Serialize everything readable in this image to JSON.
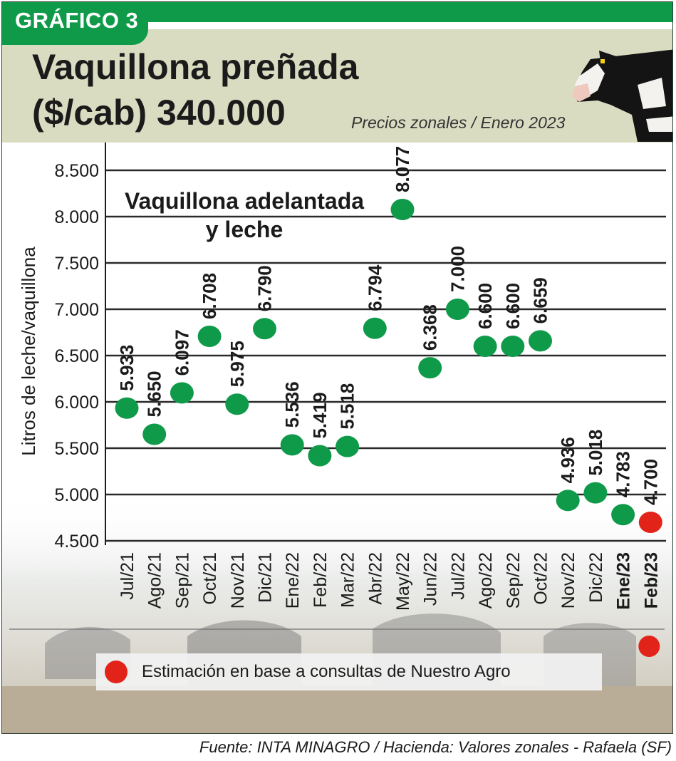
{
  "badge": "GRÁFICO 3",
  "title_line1": "Vaquillona preñada",
  "title_line2": "($/cab) 340.000",
  "subtitle": "Precios zonales / Enero 2023",
  "legend_text": "Estimación en base a consultas de Nuestro Agro",
  "source": "Fuente: INTA MINAGRO /  Hacienda: Valores zonales - Rafaela (SF)",
  "icons": {
    "header_image": "cow-icon",
    "legend_marker": "red-dot-icon"
  },
  "colors": {
    "accent": "#0f9a4a",
    "point": "#0f9a4a",
    "estimate": "#e2231a",
    "header_bg": "#d9dcc1"
  },
  "chart_data": {
    "type": "scatter",
    "title": "Vaquillona adelantada y leche",
    "title_lines": [
      "Vaquillona adelantada",
      "y leche"
    ],
    "ylabel": "Litros de leche/vaquillona",
    "xlabel": "",
    "ylim": [
      4500,
      8500
    ],
    "yticks": [
      8500,
      8000,
      7500,
      7000,
      6500,
      6000,
      5500,
      5000,
      4500
    ],
    "ytick_labels": [
      "8.500",
      "8.000",
      "7.500",
      "7.000",
      "6.500",
      "6.000",
      "5.500",
      "5.000",
      "4.500"
    ],
    "grid": true,
    "legend_position": "bottom",
    "categories": [
      "Jul/21",
      "Ago/21",
      "Sep/21",
      "Oct/21",
      "Nov/21",
      "Dic/21",
      "Ene/22",
      "Feb/22",
      "Mar/22",
      "Abr/22",
      "May/22",
      "Jun/22",
      "Jul/22",
      "Ago/22",
      "Sep/22",
      "Oct/22",
      "Nov/22",
      "Dic/22",
      "Ene/23",
      "Feb/23"
    ],
    "values": [
      5933,
      5650,
      6097,
      6708,
      5975,
      6790,
      5536,
      5419,
      5518,
      6794,
      8077,
      6368,
      7000,
      6600,
      6600,
      6659,
      4936,
      5018,
      4783,
      4700
    ],
    "value_labels": [
      "5.933",
      "5.650",
      "6.097",
      "6.708",
      "5.975",
      "6.790",
      "5.536",
      "5.419",
      "5.518",
      "6.794",
      "8.077",
      "6.368",
      "7.000",
      "6.600",
      "6.600",
      "6.659",
      "4.936",
      "5.018",
      "4.783",
      "4.700"
    ],
    "estimated": [
      false,
      false,
      false,
      false,
      false,
      false,
      false,
      false,
      false,
      false,
      false,
      false,
      false,
      false,
      false,
      false,
      false,
      false,
      false,
      true
    ],
    "bold_categories": [
      "Ene/23",
      "Feb/23"
    ]
  }
}
